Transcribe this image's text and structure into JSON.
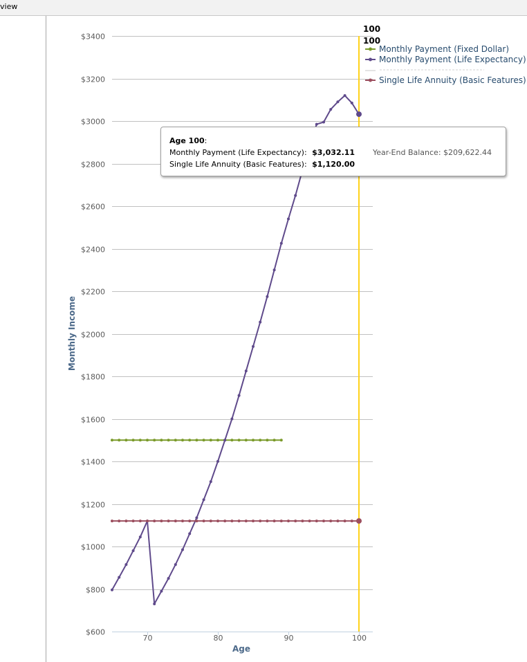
{
  "window": {
    "title_fragment": "view"
  },
  "colors": {
    "fixed": "#7a9a2a",
    "life": "#5f4a8b",
    "annuity": "#9c4f5f",
    "crosshair": "#ffd21a",
    "grid": "#c0c0c0",
    "legend_text": "#274b6d"
  },
  "crosshair": {
    "label_1": "100",
    "label_2": "100"
  },
  "legend": {
    "placement": "top-right",
    "items": [
      {
        "label": "Monthly Payment (Fixed Dollar)",
        "color": "#7a9a2a"
      },
      {
        "label": "Monthly Payment (Life Expectancy)",
        "color": "#5f4a8b"
      },
      {
        "label": "Single Life Annuity (Basic Features)",
        "color": "#9c4f5f"
      }
    ]
  },
  "tooltip": {
    "age_label": "Age 100",
    "age_suffix": ":",
    "row1_label": "Monthly Payment (Life Expectancy):",
    "row1_value": "$3,032.11",
    "row1_extra": "Year-End Balance: $209,622.44",
    "row2_label": "Single Life Annuity (Basic Features):",
    "row2_value": "$1,120.00"
  },
  "chart_data": {
    "type": "line",
    "title": "",
    "xlabel": "Age",
    "ylabel": "Monthly Income",
    "xlim": [
      65,
      102
    ],
    "ylim": [
      600,
      3400
    ],
    "xticks": [
      70,
      80,
      90,
      100
    ],
    "yticks": [
      600,
      800,
      1000,
      1200,
      1400,
      1600,
      1800,
      2000,
      2200,
      2400,
      2600,
      2800,
      3000,
      3200,
      3400
    ],
    "ytick_labels": [
      "$600",
      "$800",
      "$1000",
      "$1200",
      "$1400",
      "$1600",
      "$1800",
      "$2000",
      "$2200",
      "$2400",
      "$2600",
      "$2800",
      "$3000",
      "$3200",
      "$3400"
    ],
    "grid": true,
    "series": [
      {
        "name": "Monthly Payment (Fixed Dollar)",
        "x": [
          65,
          66,
          67,
          68,
          69,
          70,
          71,
          72,
          73,
          74,
          75,
          76,
          77,
          78,
          79,
          80,
          81,
          82,
          83,
          84,
          85,
          86,
          87,
          88,
          89
        ],
        "y": [
          1500,
          1500,
          1500,
          1500,
          1500,
          1500,
          1500,
          1500,
          1500,
          1500,
          1500,
          1500,
          1500,
          1500,
          1500,
          1500,
          1500,
          1500,
          1500,
          1500,
          1500,
          1500,
          1500,
          1500,
          1500
        ]
      },
      {
        "name": "Monthly Payment (Life Expectancy)",
        "x": [
          65,
          66,
          67,
          68,
          69,
          70,
          71,
          72,
          73,
          74,
          75,
          76,
          77,
          78,
          79,
          80,
          81,
          82,
          83,
          84,
          85,
          86,
          87,
          88,
          89,
          90,
          91,
          92,
          93,
          94,
          95,
          96,
          97,
          98,
          99,
          100
        ],
        "y": [
          796,
          855,
          915,
          980,
          1045,
          1120,
          730,
          790,
          850,
          915,
          985,
          1060,
          1135,
          1220,
          1305,
          1400,
          1500,
          1600,
          1710,
          1825,
          1940,
          2055,
          2175,
          2300,
          2425,
          2540,
          2650,
          2770,
          2880,
          2985,
          2995,
          3055,
          3090,
          3120,
          3085,
          3032.11
        ]
      },
      {
        "name": "Single Life Annuity (Basic Features)",
        "x": [
          65,
          66,
          67,
          68,
          69,
          70,
          71,
          72,
          73,
          74,
          75,
          76,
          77,
          78,
          79,
          80,
          81,
          82,
          83,
          84,
          85,
          86,
          87,
          88,
          89,
          90,
          91,
          92,
          93,
          94,
          95,
          96,
          97,
          98,
          99,
          100
        ],
        "y": [
          1120,
          1120,
          1120,
          1120,
          1120,
          1120,
          1120,
          1120,
          1120,
          1120,
          1120,
          1120,
          1120,
          1120,
          1120,
          1120,
          1120,
          1120,
          1120,
          1120,
          1120,
          1120,
          1120,
          1120,
          1120,
          1120,
          1120,
          1120,
          1120,
          1120,
          1120,
          1120,
          1120,
          1120,
          1120,
          1120
        ]
      }
    ],
    "highlight_x": 100
  }
}
